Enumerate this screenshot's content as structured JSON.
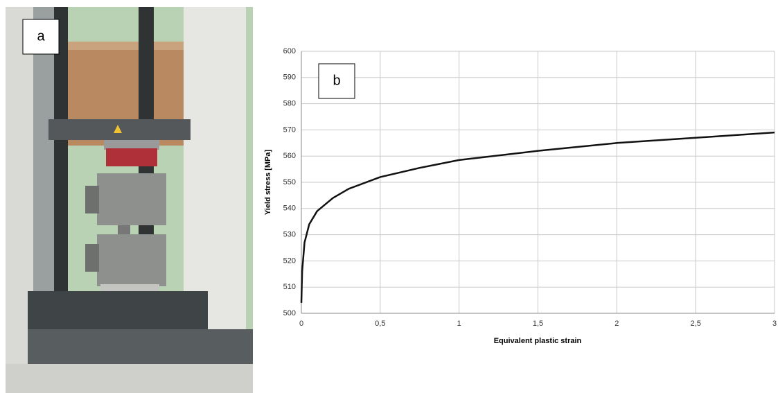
{
  "panel_labels": [
    "a",
    "b"
  ],
  "chart_data": {
    "type": "line",
    "xlabel": "Equivalent plastic strain",
    "ylabel": "Yield stress [MPa]",
    "x": [
      0,
      0.005,
      0.02,
      0.05,
      0.1,
      0.2,
      0.3,
      0.5,
      0.75,
      1,
      1.5,
      2,
      2.5,
      3
    ],
    "values": [
      504,
      516,
      527,
      534,
      539,
      544,
      547.5,
      552,
      555.5,
      558.5,
      562,
      565,
      567,
      569
    ],
    "color": "#111111",
    "xlim": [
      0,
      3
    ],
    "xticks": [
      0,
      {
        "value": 0.5,
        "label": "0,5"
      },
      1,
      {
        "value": 1.5,
        "label": "1,5"
      },
      2,
      {
        "value": 2.5,
        "label": "2,5"
      },
      3
    ],
    "ylim": [
      500,
      600
    ],
    "yticks": [
      500,
      510,
      520,
      530,
      540,
      550,
      560,
      570,
      580,
      590,
      600
    ],
    "grid": true
  }
}
